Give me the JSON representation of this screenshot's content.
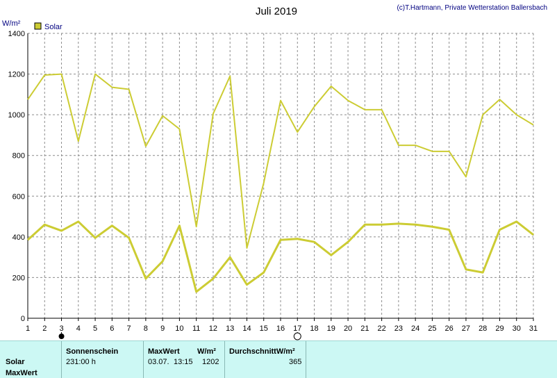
{
  "header": {
    "title": "Juli 2019",
    "copyright": "(c)T.Hartmann, Private Wetterstation Ballersbach",
    "unit": "W/m²"
  },
  "legend": {
    "label": "Solar",
    "color": "#cccc33"
  },
  "chart_data": {
    "type": "line",
    "title": "Juli 2019",
    "ylabel": "W/m²",
    "ylim": [
      0,
      1400
    ],
    "yticks": [
      0,
      200,
      400,
      600,
      800,
      1000,
      1200,
      1400
    ],
    "x": [
      1,
      2,
      3,
      4,
      5,
      6,
      7,
      8,
      9,
      10,
      11,
      12,
      13,
      14,
      15,
      16,
      17,
      18,
      19,
      20,
      21,
      22,
      23,
      24,
      25,
      26,
      27,
      28,
      29,
      30,
      31
    ],
    "grid": true,
    "legend_position": "top-left",
    "series": [
      {
        "name": "Solar",
        "role": "max",
        "values": [
          1075,
          1195,
          1200,
          870,
          1200,
          1135,
          1125,
          845,
          995,
          930,
          450,
          1005,
          1190,
          345,
          665,
          1070,
          915,
          1040,
          1140,
          1070,
          1025,
          1025,
          850,
          850,
          820,
          820,
          695,
          1000,
          1075,
          1000,
          950
        ]
      },
      {
        "name": "Solar",
        "role": "mean",
        "values": [
          385,
          460,
          430,
          475,
          395,
          455,
          395,
          195,
          280,
          455,
          130,
          195,
          300,
          165,
          225,
          385,
          390,
          375,
          310,
          375,
          460,
          460,
          465,
          460,
          450,
          435,
          240,
          225,
          435,
          475,
          410
        ]
      }
    ],
    "markers": [
      {
        "day": 3,
        "symbol": "filled-circle"
      },
      {
        "day": 17,
        "symbol": "open-circle"
      }
    ]
  },
  "stats": {
    "headers": {
      "sunshine": "Sonnenschein",
      "maxwert": "MaxWert",
      "maxwert_unit": "W/m²",
      "avg": "DurchschnittW/m²"
    },
    "rows": {
      "solar": "Solar",
      "maxwert": "MaxWert"
    },
    "values": {
      "sunshine": "231:00 h",
      "max_date": "03.07.",
      "max_time": "13:15",
      "max_value": "1202",
      "avg_value": "365"
    }
  }
}
